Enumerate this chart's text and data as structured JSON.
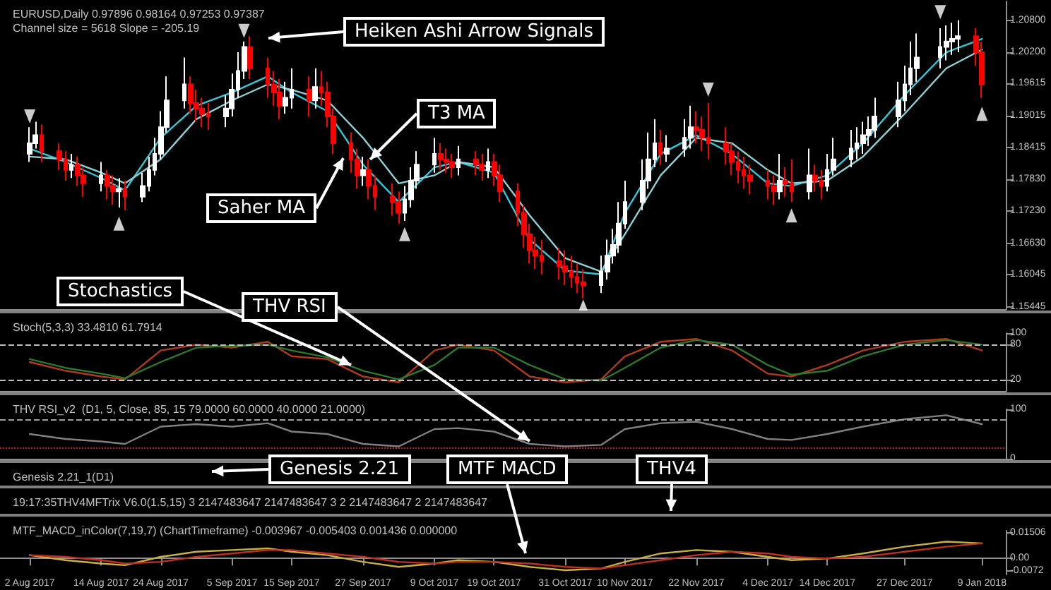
{
  "chart_data": [
    {
      "type": "candlestick",
      "title": "EURUSD,Daily 0.97896 0.98164 0.97253 0.97387",
      "subtitle": "Channel size = 5618 Slope = -205.19",
      "annotations": [
        "Heiken Ashi Arrow Signals",
        "T3 MA",
        "Saher MA",
        "MTF MACD",
        "Genesis 2.21",
        "THV4"
      ],
      "x": [
        "2017-08-02",
        "2017-08-03",
        "2017-08-04",
        "2017-08-07",
        "2017-08-08",
        "2017-08-09",
        "2017-08-10",
        "2017-08-11",
        "2017-08-14",
        "2017-08-15",
        "2017-08-16",
        "2017-08-17",
        "2017-08-18",
        "2017-08-21",
        "2017-08-22",
        "2017-08-23",
        "2017-08-24",
        "2017-08-25",
        "2017-08-28",
        "2017-08-29",
        "2017-08-30",
        "2017-08-31",
        "2017-09-01",
        "2017-09-04",
        "2017-09-05",
        "2017-09-06",
        "2017-09-07",
        "2017-09-08",
        "2017-09-11",
        "2017-09-12",
        "2017-09-13",
        "2017-09-14",
        "2017-09-15",
        "2017-09-18",
        "2017-09-19",
        "2017-09-20",
        "2017-09-21",
        "2017-09-22",
        "2017-09-25",
        "2017-09-26",
        "2017-09-27",
        "2017-09-28",
        "2017-09-29",
        "2017-10-02",
        "2017-10-03",
        "2017-10-04",
        "2017-10-05",
        "2017-10-06",
        "2017-10-09",
        "2017-10-10",
        "2017-10-11",
        "2017-10-12",
        "2017-10-13",
        "2017-10-16",
        "2017-10-17",
        "2017-10-18",
        "2017-10-19",
        "2017-10-20",
        "2017-10-23",
        "2017-10-24",
        "2017-10-25",
        "2017-10-26",
        "2017-10-27",
        "2017-10-30",
        "2017-10-31",
        "2017-11-01",
        "2017-11-02",
        "2017-11-03",
        "2017-11-06",
        "2017-11-07",
        "2017-11-08",
        "2017-11-09",
        "2017-11-10",
        "2017-11-13",
        "2017-11-14",
        "2017-11-15",
        "2017-11-16",
        "2017-11-17",
        "2017-11-20",
        "2017-11-21",
        "2017-11-22",
        "2017-11-23",
        "2017-11-24",
        "2017-11-27",
        "2017-11-28",
        "2017-11-29",
        "2017-11-30",
        "2017-12-01",
        "2017-12-04",
        "2017-12-05",
        "2017-12-06",
        "2017-12-07",
        "2017-12-08",
        "2017-12-11",
        "2017-12-12",
        "2017-12-13",
        "2017-12-14",
        "2017-12-15",
        "2017-12-18",
        "2017-12-19",
        "2017-12-20",
        "2017-12-21",
        "2017-12-22",
        "2017-12-26",
        "2017-12-27",
        "2017-12-28",
        "2017-12-29",
        "2018-01-02",
        "2018-01-03",
        "2018-01-04",
        "2018-01-05",
        "2018-01-08",
        "2018-01-09"
      ],
      "ohlc": [
        [
          1.183,
          1.188,
          1.1815,
          1.185
        ],
        [
          1.185,
          1.189,
          1.184,
          1.1865
        ],
        [
          1.1865,
          1.1885,
          1.1815,
          1.1835
        ],
        [
          1.1835,
          1.185,
          1.18,
          1.182
        ],
        [
          1.182,
          1.1835,
          1.178,
          1.18
        ],
        [
          1.18,
          1.183,
          1.1785,
          1.181
        ],
        [
          1.181,
          1.1825,
          1.177,
          1.179
        ],
        [
          1.179,
          1.1805,
          1.175,
          1.1775
        ],
        [
          1.1775,
          1.1815,
          1.176,
          1.179
        ],
        [
          1.179,
          1.18,
          1.1745,
          1.177
        ],
        [
          1.177,
          1.179,
          1.1735,
          1.176
        ],
        [
          1.176,
          1.1785,
          1.173,
          1.1765
        ],
        [
          1.1765,
          1.178,
          1.1725,
          1.175
        ],
        [
          1.175,
          1.1795,
          1.174,
          1.177
        ],
        [
          1.177,
          1.1825,
          1.176,
          1.18
        ],
        [
          1.18,
          1.186,
          1.179,
          1.183
        ],
        [
          1.183,
          1.191,
          1.182,
          1.188
        ],
        [
          1.188,
          1.1975,
          1.187,
          1.193
        ],
        [
          1.193,
          1.201,
          1.1915,
          1.196
        ],
        [
          1.196,
          1.1975,
          1.1905,
          1.1925
        ],
        [
          1.1925,
          1.195,
          1.189,
          1.1915
        ],
        [
          1.1915,
          1.1935,
          1.188,
          1.1905
        ],
        [
          1.1905,
          1.1925,
          1.1875,
          1.19
        ],
        [
          1.19,
          1.194,
          1.188,
          1.1915
        ],
        [
          1.1915,
          1.198,
          1.19,
          1.195
        ],
        [
          1.195,
          1.202,
          1.1935,
          1.1985
        ],
        [
          1.1985,
          1.204,
          1.197,
          1.203
        ],
        [
          1.203,
          1.205,
          1.197,
          1.199
        ],
        [
          1.199,
          1.201,
          1.1935,
          1.196
        ],
        [
          1.196,
          1.1985,
          1.192,
          1.1945
        ],
        [
          1.1945,
          1.197,
          1.1895,
          1.192
        ],
        [
          1.192,
          1.1965,
          1.1905,
          1.1935
        ],
        [
          1.1935,
          1.199,
          1.1915,
          1.195
        ],
        [
          1.195,
          1.1975,
          1.19,
          1.193
        ],
        [
          1.193,
          1.199,
          1.1915,
          1.1955
        ],
        [
          1.1955,
          1.1985,
          1.192,
          1.1945
        ],
        [
          1.1945,
          1.1965,
          1.188,
          1.19
        ],
        [
          1.19,
          1.1915,
          1.183,
          1.185
        ],
        [
          1.185,
          1.187,
          1.1795,
          1.182
        ],
        [
          1.182,
          1.184,
          1.1765,
          1.179
        ],
        [
          1.179,
          1.1825,
          1.177,
          1.18
        ],
        [
          1.18,
          1.182,
          1.1745,
          1.177
        ],
        [
          1.177,
          1.179,
          1.1725,
          1.175
        ],
        [
          1.175,
          1.1775,
          1.1715,
          1.174
        ],
        [
          1.174,
          1.176,
          1.17,
          1.172
        ],
        [
          1.172,
          1.177,
          1.1705,
          1.1745
        ],
        [
          1.1745,
          1.1805,
          1.173,
          1.178
        ],
        [
          1.178,
          1.1835,
          1.1765,
          1.181
        ],
        [
          1.181,
          1.186,
          1.1795,
          1.183
        ],
        [
          1.183,
          1.185,
          1.18,
          1.182
        ],
        [
          1.182,
          1.184,
          1.1795,
          1.1815
        ],
        [
          1.1815,
          1.183,
          1.1785,
          1.1805
        ],
        [
          1.1805,
          1.1845,
          1.179,
          1.182
        ],
        [
          1.182,
          1.1835,
          1.179,
          1.181
        ],
        [
          1.181,
          1.183,
          1.178,
          1.18
        ],
        [
          1.18,
          1.184,
          1.1785,
          1.1815
        ],
        [
          1.1815,
          1.183,
          1.177,
          1.179
        ],
        [
          1.179,
          1.181,
          1.174,
          1.176
        ],
        [
          1.176,
          1.1775,
          1.1695,
          1.172
        ],
        [
          1.172,
          1.1735,
          1.1655,
          1.168
        ],
        [
          1.168,
          1.17,
          1.1625,
          1.165
        ],
        [
          1.165,
          1.1675,
          1.1615,
          1.164
        ],
        [
          1.164,
          1.167,
          1.1605,
          1.163
        ],
        [
          1.163,
          1.1655,
          1.1595,
          1.162
        ],
        [
          1.162,
          1.165,
          1.1585,
          1.161
        ],
        [
          1.161,
          1.164,
          1.158,
          1.16
        ],
        [
          1.16,
          1.1625,
          1.157,
          1.159
        ],
        [
          1.159,
          1.1615,
          1.156,
          1.1585
        ],
        [
          1.1585,
          1.164,
          1.157,
          1.161
        ],
        [
          1.161,
          1.167,
          1.1595,
          1.164
        ],
        [
          1.164,
          1.169,
          1.1625,
          1.166
        ],
        [
          1.166,
          1.174,
          1.1645,
          1.17
        ],
        [
          1.17,
          1.178,
          1.169,
          1.174
        ],
        [
          1.174,
          1.182,
          1.1725,
          1.178
        ],
        [
          1.178,
          1.187,
          1.1765,
          1.182
        ],
        [
          1.182,
          1.1895,
          1.1805,
          1.185
        ],
        [
          1.185,
          1.1875,
          1.181,
          1.183
        ],
        [
          1.183,
          1.1865,
          1.1815,
          1.184
        ],
        [
          1.184,
          1.1895,
          1.1825,
          1.186
        ],
        [
          1.186,
          1.192,
          1.184,
          1.188
        ],
        [
          1.188,
          1.191,
          1.185,
          1.1875
        ],
        [
          1.1875,
          1.19,
          1.1835,
          1.186
        ],
        [
          1.186,
          1.1925,
          1.182,
          1.185
        ],
        [
          1.185,
          1.188,
          1.181,
          1.1835
        ],
        [
          1.1835,
          1.185,
          1.179,
          1.1815
        ],
        [
          1.1815,
          1.1835,
          1.1775,
          1.18
        ],
        [
          1.18,
          1.1825,
          1.1765,
          1.179
        ],
        [
          1.179,
          1.181,
          1.1755,
          1.178
        ],
        [
          1.178,
          1.18,
          1.1745,
          1.177
        ],
        [
          1.177,
          1.179,
          1.1735,
          1.176
        ],
        [
          1.176,
          1.183,
          1.1745,
          1.178
        ],
        [
          1.178,
          1.1805,
          1.175,
          1.1775
        ],
        [
          1.1775,
          1.182,
          1.174,
          1.176
        ],
        [
          1.176,
          1.184,
          1.1745,
          1.179
        ],
        [
          1.179,
          1.181,
          1.176,
          1.178
        ],
        [
          1.178,
          1.18,
          1.1745,
          1.177
        ],
        [
          1.177,
          1.183,
          1.176,
          1.18
        ],
        [
          1.18,
          1.186,
          1.179,
          1.182
        ],
        [
          1.182,
          1.1875,
          1.1805,
          1.184
        ],
        [
          1.184,
          1.188,
          1.182,
          1.185
        ],
        [
          1.185,
          1.189,
          1.183,
          1.1865
        ],
        [
          1.1865,
          1.19,
          1.1845,
          1.1875
        ],
        [
          1.1875,
          1.1935,
          1.186,
          1.19
        ],
        [
          1.19,
          1.1965,
          1.188,
          1.193
        ],
        [
          1.193,
          1.1995,
          1.191,
          1.196
        ],
        [
          1.196,
          1.204,
          1.194,
          1.199
        ],
        [
          1.199,
          1.2055,
          1.1965,
          1.201
        ],
        [
          1.201,
          1.2065,
          1.199,
          1.203
        ],
        [
          1.203,
          1.207,
          1.2005,
          1.204
        ],
        [
          1.204,
          1.2075,
          1.2015,
          1.2045
        ],
        [
          1.2045,
          1.208,
          1.202,
          1.205
        ],
        [
          1.205,
          1.2065,
          1.1995,
          1.202
        ],
        [
          1.202,
          1.204,
          1.1935,
          1.196
        ]
      ],
      "colors": [
        "#ffffff",
        "#ffffff",
        "#ff0000",
        "#ff0000",
        "#ff0000",
        "#ffffff",
        "#ff0000",
        "#ff0000",
        "#ffffff",
        "#ff0000",
        "#ff0000",
        "#ffffff",
        "#ff0000",
        "#ffffff",
        "#ffffff",
        "#ffffff",
        "#ffffff",
        "#ffffff",
        "#ffffff",
        "#ff0000",
        "#ff0000",
        "#ff0000",
        "#ff0000",
        "#ffffff",
        "#ffffff",
        "#ffffff",
        "#ffffff",
        "#ff0000",
        "#ff0000",
        "#ff0000",
        "#ff0000",
        "#ffffff",
        "#ffffff",
        "#ff0000",
        "#ffffff",
        "#ff0000",
        "#ff0000",
        "#ff0000",
        "#ff0000",
        "#ff0000",
        "#ffffff",
        "#ff0000",
        "#ff0000",
        "#ff0000",
        "#ff0000",
        "#ffffff",
        "#ffffff",
        "#ffffff",
        "#ffffff",
        "#ff0000",
        "#ff0000",
        "#ff0000",
        "#ffffff",
        "#ff0000",
        "#ff0000",
        "#ffffff",
        "#ff0000",
        "#ff0000",
        "#ff0000",
        "#ff0000",
        "#ff0000",
        "#ff0000",
        "#ff0000",
        "#ff0000",
        "#ff0000",
        "#ff0000",
        "#ff0000",
        "#ff0000",
        "#ffffff",
        "#ffffff",
        "#ffffff",
        "#ffffff",
        "#ffffff",
        "#ffffff",
        "#ffffff",
        "#ffffff",
        "#ff0000",
        "#ffffff",
        "#ffffff",
        "#ffffff",
        "#ff0000",
        "#ff0000",
        "#ff0000",
        "#ff0000",
        "#ff0000",
        "#ff0000",
        "#ff0000",
        "#ff0000",
        "#ff0000",
        "#ff0000",
        "#ffffff",
        "#ff0000",
        "#ff0000",
        "#ffffff",
        "#ff0000",
        "#ff0000",
        "#ffffff",
        "#ffffff",
        "#ffffff",
        "#ffffff",
        "#ffffff",
        "#ffffff",
        "#ffffff",
        "#ffffff",
        "#ffffff",
        "#ffffff",
        "#ffffff",
        "#ffffff",
        "#ffffff",
        "#ffffff",
        "#ffffff",
        "#ff0000",
        "#ff0000"
      ],
      "xlim": [
        "2017-07-28",
        "2018-01-13"
      ],
      "ylim": [
        1.154,
        1.2115
      ],
      "yticks": [
        {
          "value": 1.208,
          "label": "1.20800"
        },
        {
          "value": 1.202,
          "label": "1.20200"
        },
        {
          "value": 1.19615,
          "label": "1.19615"
        },
        {
          "value": 1.19015,
          "label": "1.19015"
        },
        {
          "value": 1.18415,
          "label": "1.18415"
        },
        {
          "value": 1.1783,
          "label": "1.17830"
        },
        {
          "value": 1.1723,
          "label": "1.17230"
        },
        {
          "value": 1.1663,
          "label": "1.16630"
        },
        {
          "value": 1.16045,
          "label": "1.16045"
        },
        {
          "value": 1.15445,
          "label": "1.15445"
        }
      ],
      "tick_labels": "y",
      "series": [
        {
          "type": "line",
          "color": "#30c8d8",
          "x": [
            "2017-08-02",
            "2017-08-08",
            "2017-08-14",
            "2017-08-18",
            "2017-08-24",
            "2017-08-30",
            "2017-09-05",
            "2017-09-11",
            "2017-09-15",
            "2017-09-21",
            "2017-09-27",
            "2017-10-03",
            "2017-10-09",
            "2017-10-13",
            "2017-10-19",
            "2017-10-25",
            "2017-10-31",
            "2017-11-06",
            "2017-11-10",
            "2017-11-16",
            "2017-11-22",
            "2017-11-28",
            "2017-12-04",
            "2017-12-08",
            "2017-12-14",
            "2017-12-20",
            "2017-12-27",
            "2018-01-03",
            "2018-01-09"
          ],
          "values": [
            1.184,
            1.1815,
            1.1785,
            1.1762,
            1.186,
            1.192,
            1.1945,
            1.1975,
            1.1945,
            1.191,
            1.181,
            1.174,
            1.1805,
            1.1815,
            1.1795,
            1.167,
            1.1612,
            1.1605,
            1.172,
            1.183,
            1.1865,
            1.183,
            1.1775,
            1.177,
            1.179,
            1.185,
            1.194,
            1.202,
            1.2045
          ]
        },
        {
          "type": "line",
          "color": "#8fd0d4",
          "x": [
            "2017-08-02",
            "2017-08-08",
            "2017-08-14",
            "2017-08-18",
            "2017-08-24",
            "2017-08-30",
            "2017-09-05",
            "2017-09-11",
            "2017-09-15",
            "2017-09-21",
            "2017-09-27",
            "2017-10-03",
            "2017-10-09",
            "2017-10-13",
            "2017-10-19",
            "2017-10-25",
            "2017-10-31",
            "2017-11-06",
            "2017-11-10",
            "2017-11-16",
            "2017-11-22",
            "2017-11-28",
            "2017-12-04",
            "2017-12-08",
            "2017-12-14",
            "2017-12-20",
            "2017-12-27",
            "2018-01-03",
            "2018-01-09"
          ],
          "values": [
            1.1825,
            1.182,
            1.1795,
            1.1775,
            1.182,
            1.1895,
            1.193,
            1.196,
            1.195,
            1.193,
            1.186,
            1.1775,
            1.179,
            1.1815,
            1.1805,
            1.1715,
            1.1635,
            1.161,
            1.168,
            1.179,
            1.186,
            1.185,
            1.18,
            1.1775,
            1.178,
            1.1825,
            1.1905,
            1.199,
            1.2025
          ]
        },
        {
          "type": "scatter",
          "color": "#ffffff",
          "marker": "triangle",
          "x": [
            "2017-08-02",
            "2017-09-07",
            "2017-11-24",
            "2018-01-02",
            "2017-08-17",
            "2017-10-04",
            "2017-11-03",
            "2017-12-08",
            "2018-01-09"
          ],
          "values": [
            1.19,
            1.206,
            1.195,
            1.2095,
            1.17,
            1.168,
            1.1545,
            1.1715,
            1.1905
          ]
        }
      ]
    },
    {
      "type": "line",
      "title": "Stoch(5,3,3) 33.4810 61.7914",
      "annotations": [
        {
          "text": "Stochastics",
          "x": "2017-09-25",
          "y": 40
        }
      ],
      "xlim": [
        "2017-07-28",
        "2018-01-13"
      ],
      "ylim": [
        0,
        100
      ],
      "yticks": [
        20,
        80,
        100
      ],
      "tick_labels": "y",
      "ref_lines": [
        {
          "axis": "y",
          "value": 80,
          "color": "#c0c0c0",
          "line_style": "dashed"
        },
        {
          "axis": "y",
          "value": 20,
          "color": "#c0c0c0",
          "line_style": "dashed"
        }
      ],
      "series": [
        {
          "color": "#b03a1a",
          "x": [
            "2017-08-02",
            "2017-08-08",
            "2017-08-14",
            "2017-08-18",
            "2017-08-24",
            "2017-08-30",
            "2017-09-05",
            "2017-09-11",
            "2017-09-15",
            "2017-09-21",
            "2017-09-27",
            "2017-10-03",
            "2017-10-09",
            "2017-10-13",
            "2017-10-19",
            "2017-10-25",
            "2017-10-31",
            "2017-11-06",
            "2017-11-10",
            "2017-11-16",
            "2017-11-22",
            "2017-11-28",
            "2017-12-04",
            "2017-12-08",
            "2017-12-14",
            "2017-12-20",
            "2017-12-27",
            "2018-01-03",
            "2018-01-09"
          ],
          "values": [
            50,
            35,
            25,
            20,
            70,
            80,
            75,
            85,
            60,
            55,
            25,
            15,
            70,
            80,
            70,
            25,
            15,
            20,
            60,
            85,
            90,
            70,
            30,
            25,
            45,
            70,
            85,
            90,
            70
          ]
        },
        {
          "color": "#2a7a2a",
          "x": [
            "2017-08-02",
            "2017-08-08",
            "2017-08-14",
            "2017-08-18",
            "2017-08-24",
            "2017-08-30",
            "2017-09-05",
            "2017-09-11",
            "2017-09-15",
            "2017-09-21",
            "2017-09-27",
            "2017-10-03",
            "2017-10-09",
            "2017-10-13",
            "2017-10-19",
            "2017-10-25",
            "2017-10-31",
            "2017-11-06",
            "2017-11-10",
            "2017-11-16",
            "2017-11-22",
            "2017-11-28",
            "2017-12-04",
            "2017-12-08",
            "2017-12-14",
            "2017-12-20",
            "2017-12-27",
            "2018-01-03",
            "2018-01-09"
          ],
          "values": [
            55,
            40,
            30,
            22,
            50,
            75,
            78,
            80,
            70,
            58,
            35,
            20,
            45,
            75,
            75,
            45,
            20,
            18,
            40,
            75,
            88,
            80,
            45,
            28,
            35,
            60,
            80,
            88,
            80
          ]
        }
      ]
    },
    {
      "type": "line",
      "title": "THV RSI_v2  (D1, 5, Close, 85, 15 79.0000 60.0000 40.0000 21.0000)",
      "annotations": [
        {
          "text": "THV RSI",
          "x": "2017-10-25",
          "y": 30
        }
      ],
      "xlim": [
        "2017-07-28",
        "2018-01-13"
      ],
      "ylim": [
        0,
        100
      ],
      "yticks": [
        0,
        100
      ],
      "tick_labels": "y",
      "ref_lines": [
        {
          "axis": "y",
          "value": 79,
          "color": "#a0a0a0",
          "line_style": "dashed"
        },
        {
          "axis": "y",
          "value": 21,
          "color": "#c02020",
          "line_style": "dotted"
        }
      ],
      "series": [
        {
          "color": "#808080",
          "x": [
            "2017-08-02",
            "2017-08-08",
            "2017-08-14",
            "2017-08-18",
            "2017-08-24",
            "2017-08-30",
            "2017-09-05",
            "2017-09-11",
            "2017-09-15",
            "2017-09-21",
            "2017-09-27",
            "2017-10-03",
            "2017-10-09",
            "2017-10-13",
            "2017-10-19",
            "2017-10-25",
            "2017-10-31",
            "2017-11-06",
            "2017-11-10",
            "2017-11-16",
            "2017-11-22",
            "2017-11-28",
            "2017-12-04",
            "2017-12-08",
            "2017-12-14",
            "2017-12-20",
            "2017-12-27",
            "2018-01-03",
            "2018-01-09"
          ],
          "values": [
            50,
            40,
            35,
            30,
            65,
            70,
            65,
            72,
            55,
            50,
            30,
            25,
            60,
            62,
            55,
            30,
            25,
            28,
            60,
            72,
            75,
            60,
            40,
            38,
            50,
            65,
            80,
            88,
            70
          ]
        }
      ]
    },
    {
      "type": "other",
      "title": "Genesis 2.21_1(D1)"
    },
    {
      "type": "other",
      "title": "19:17:35THV4MFTrix V6.0(1.5,15) 3 2147483647 2147483647 3 2 2147483647 2 2147483647"
    },
    {
      "type": "line",
      "title": "MTF_MACD_inColor(7,19,7) (ChartTimeframe) -0.003967 -0.005403 0.001436 0.000000",
      "xlim": [
        "2017-07-28",
        "2018-01-13"
      ],
      "ylim": [
        -0.0095,
        0.0165
      ],
      "yticks": [
        {
          "value": 0.01506,
          "label": "0.01506"
        },
        {
          "value": 0,
          "label": "0.00"
        },
        {
          "value": -0.0072,
          "label": "-0.0072"
        }
      ],
      "xticks": [
        {
          "value": "2017-08-02",
          "label": "2 Aug 2017"
        },
        {
          "value": "2017-08-14",
          "label": "14 Aug 2017"
        },
        {
          "value": "2017-08-24",
          "label": "24 Aug 2017"
        },
        {
          "value": "2017-09-05",
          "label": "5 Sep 2017"
        },
        {
          "value": "2017-09-15",
          "label": "15 Sep 2017"
        },
        {
          "value": "2017-09-27",
          "label": "27 Sep 2017"
        },
        {
          "value": "2017-10-09",
          "label": "9 Oct 2017"
        },
        {
          "value": "2017-10-19",
          "label": "19 Oct 2017"
        },
        {
          "value": "2017-10-31",
          "label": "31 Oct 2017"
        },
        {
          "value": "2017-11-10",
          "label": "10 Nov 2017"
        },
        {
          "value": "2017-11-22",
          "label": "22 Nov 2017"
        },
        {
          "value": "2017-12-04",
          "label": "4 Dec 2017"
        },
        {
          "value": "2017-12-14",
          "label": "14 Dec 2017"
        },
        {
          "value": "2017-12-27",
          "label": "27 Dec 2017"
        },
        {
          "value": "2018-01-09",
          "label": "9 Jan 2018"
        }
      ],
      "series": [
        {
          "color": "#c8b040",
          "x": [
            "2017-08-02",
            "2017-08-08",
            "2017-08-14",
            "2017-08-18",
            "2017-08-24",
            "2017-08-30",
            "2017-09-05",
            "2017-09-11",
            "2017-09-15",
            "2017-09-21",
            "2017-09-27",
            "2017-10-03",
            "2017-10-09",
            "2017-10-13",
            "2017-10-19",
            "2017-10-25",
            "2017-10-31",
            "2017-11-06",
            "2017-11-10",
            "2017-11-16",
            "2017-11-22",
            "2017-11-28",
            "2017-12-04",
            "2017-12-08",
            "2017-12-14",
            "2017-12-20",
            "2017-12-27",
            "2018-01-03",
            "2018-01-09"
          ],
          "values": [
            0.002,
            -0.001,
            -0.003,
            -0.004,
            0.001,
            0.004,
            0.005,
            0.006,
            0.004,
            0.002,
            -0.002,
            -0.005,
            -0.003,
            -0.001,
            -0.002,
            -0.005,
            -0.007,
            -0.006,
            -0.002,
            0.003,
            0.005,
            0.004,
            0.001,
            -0.001,
            0.0,
            0.003,
            0.007,
            0.01,
            0.009
          ]
        },
        {
          "color": "#c03020",
          "x": [
            "2017-08-02",
            "2017-08-08",
            "2017-08-14",
            "2017-08-18",
            "2017-08-24",
            "2017-08-30",
            "2017-09-05",
            "2017-09-11",
            "2017-09-15",
            "2017-09-21",
            "2017-09-27",
            "2017-10-03",
            "2017-10-09",
            "2017-10-13",
            "2017-10-19",
            "2017-10-25",
            "2017-10-31",
            "2017-11-06",
            "2017-11-10",
            "2017-11-16",
            "2017-11-22",
            "2017-11-28",
            "2017-12-04",
            "2017-12-08",
            "2017-12-14",
            "2017-12-20",
            "2017-12-27",
            "2018-01-03",
            "2018-01-09"
          ],
          "values": [
            0.002,
            0.001,
            -0.001,
            -0.003,
            -0.002,
            0.001,
            0.003,
            0.005,
            0.005,
            0.003,
            0.001,
            -0.002,
            -0.003,
            -0.002,
            -0.002,
            -0.003,
            -0.005,
            -0.006,
            -0.004,
            -0.001,
            0.002,
            0.004,
            0.003,
            0.001,
            0.0,
            0.001,
            0.004,
            0.007,
            0.009
          ]
        }
      ]
    }
  ]
}
